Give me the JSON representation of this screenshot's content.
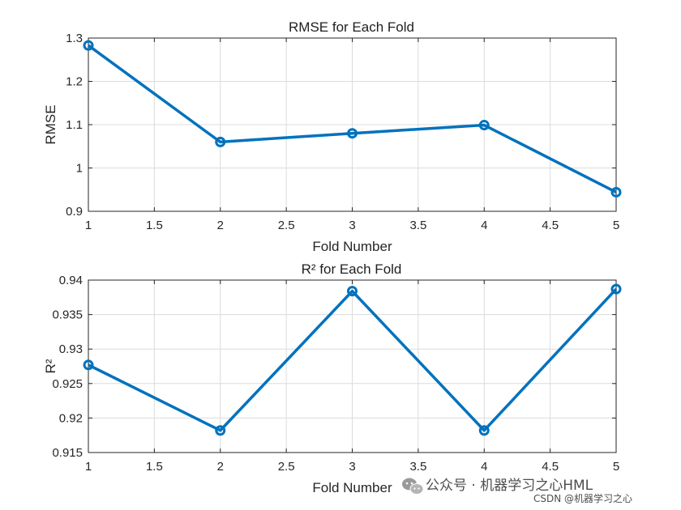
{
  "chart_data": [
    {
      "type": "line",
      "title": "RMSE for Each Fold",
      "xlabel": "Fold Number",
      "ylabel": "RMSE",
      "x": [
        1,
        2,
        3,
        4,
        5
      ],
      "series": [
        {
          "name": "RMSE",
          "values": [
            1.283,
            1.06,
            1.08,
            1.099,
            0.944
          ]
        }
      ],
      "xlim": [
        1,
        5
      ],
      "ylim": [
        0.9,
        1.3
      ],
      "xticks": [
        1,
        1.5,
        2,
        2.5,
        3,
        3.5,
        4,
        4.5,
        5
      ],
      "xtick_labels": [
        "1",
        "1.5",
        "2",
        "2.5",
        "3",
        "3.5",
        "4",
        "4.5",
        "5"
      ],
      "yticks": [
        0.9,
        1.0,
        1.1,
        1.2,
        1.3
      ],
      "ytick_labels": [
        "0.9",
        "1",
        "1.1",
        "1.2",
        "1.3"
      ],
      "grid": true,
      "color": "#0072BD",
      "marker": "circle"
    },
    {
      "type": "line",
      "title": "R² for Each Fold",
      "xlabel": "Fold Number",
      "ylabel": "R²",
      "x": [
        1,
        2,
        3,
        4,
        5
      ],
      "series": [
        {
          "name": "R²",
          "values": [
            0.9277,
            0.9182,
            0.9384,
            0.9182,
            0.9387
          ]
        }
      ],
      "xlim": [
        1,
        5
      ],
      "ylim": [
        0.915,
        0.94
      ],
      "xticks": [
        1,
        1.5,
        2,
        2.5,
        3,
        3.5,
        4,
        4.5,
        5
      ],
      "xtick_labels": [
        "1",
        "1.5",
        "2",
        "2.5",
        "3",
        "3.5",
        "4",
        "4.5",
        "5"
      ],
      "yticks": [
        0.915,
        0.92,
        0.925,
        0.93,
        0.935,
        0.94
      ],
      "ytick_labels": [
        "0.915",
        "0.92",
        "0.925",
        "0.93",
        "0.935",
        "0.94"
      ],
      "grid": true,
      "color": "#0072BD",
      "marker": "circle"
    }
  ],
  "watermark": {
    "logo_icon": "wechat-icon",
    "text": "公众号 · 机器学习之心HML",
    "source": "CSDN @机器学习之心"
  }
}
